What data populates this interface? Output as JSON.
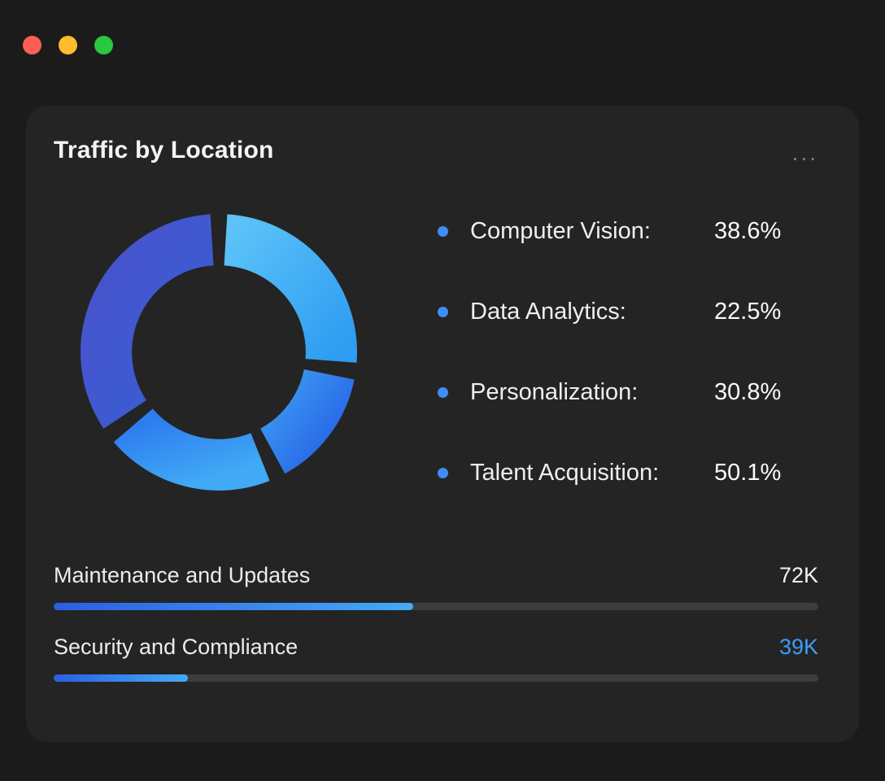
{
  "window": {
    "controls": [
      {
        "name": "close",
        "color": "#ff5f57"
      },
      {
        "name": "minimize",
        "color": "#febc2e"
      },
      {
        "name": "zoom",
        "color": "#28c840"
      }
    ]
  },
  "card": {
    "title": "Traffic by Location",
    "menu_label": "...",
    "accent": "#3e8ef7",
    "legend": [
      {
        "label": "Computer Vision:",
        "value": "38.6%"
      },
      {
        "label": "Data Analytics:",
        "value": "22.5%"
      },
      {
        "label": "Personalization:",
        "value": "30.8%"
      },
      {
        "label": "Talent Acquisition:",
        "value": "50.1%"
      }
    ],
    "bars": [
      {
        "label": "Maintenance and Updates",
        "value": "72K",
        "progress_percent": 47,
        "value_color": "#f2f2f2"
      },
      {
        "label": "Security and Compliance",
        "value": "39K",
        "progress_percent": 17.5,
        "value_color": "#3b9ef8"
      }
    ]
  },
  "chart_data": {
    "type": "pie",
    "variant": "donut",
    "title": "Traffic by Location",
    "categories": [
      "Computer Vision",
      "Data Analytics",
      "Personalization",
      "Talent Acquisition"
    ],
    "values": [
      38.6,
      22.5,
      30.8,
      50.1
    ],
    "unit": "%",
    "legend_position": "right",
    "segment_colors": [
      [
        "#5cc2f8",
        "#2e9df2"
      ],
      [
        "#3f9ff3",
        "#2766e7"
      ],
      [
        "#2e7cf0",
        "#41aaf4"
      ],
      [
        "#4753cc",
        "#3660d6"
      ]
    ],
    "secondary_metrics": [
      {
        "label": "Maintenance and Updates",
        "value": "72K"
      },
      {
        "label": "Security and Compliance",
        "value": "39K"
      }
    ]
  }
}
